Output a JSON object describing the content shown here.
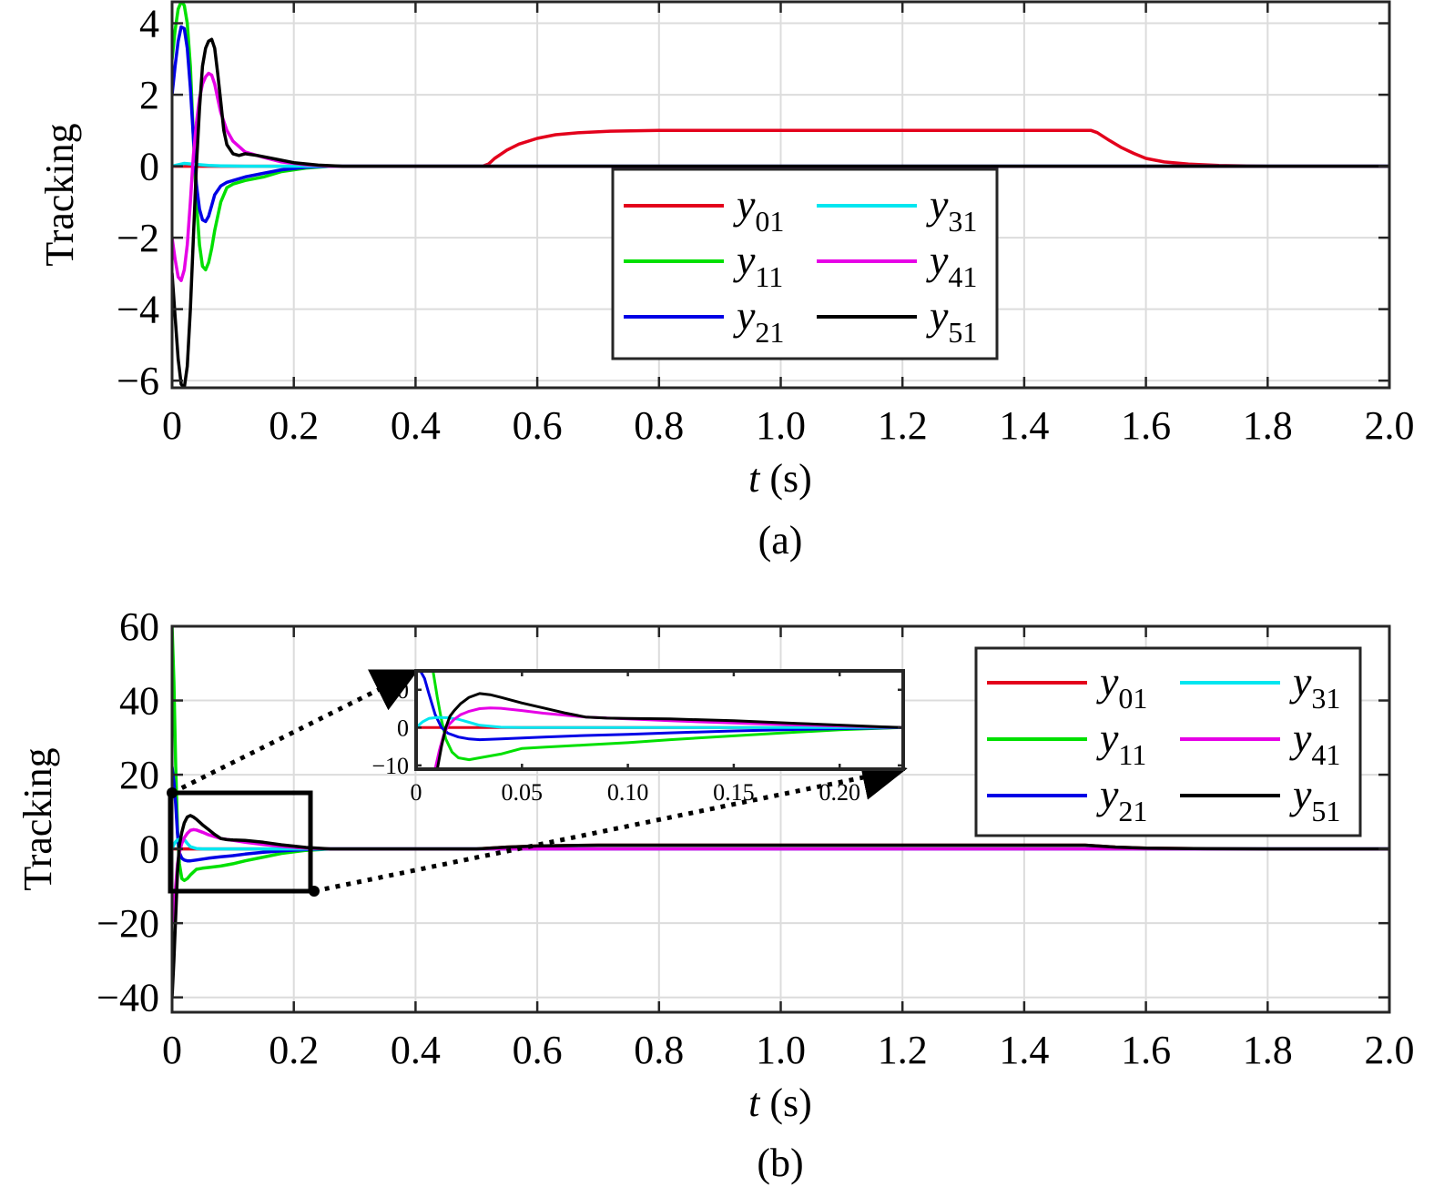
{
  "figure": {
    "panel_a": {
      "caption": "(a)"
    },
    "panel_b": {
      "caption": "(b)"
    }
  },
  "chart_data": [
    {
      "type": "line",
      "panel": "(a)",
      "xlabel_italic": "t",
      "xlabel_rest": " (s)",
      "ylabel": "Tracking",
      "xlim": [
        0,
        2.0
      ],
      "ylim": [
        -6.2,
        4.6
      ],
      "xticks": [
        0,
        0.2,
        0.4,
        0.6,
        0.8,
        1.0,
        1.2,
        1.4,
        1.6,
        1.8,
        2.0
      ],
      "xtick_labels": [
        "0",
        "0.2",
        "0.4",
        "0.6",
        "0.8",
        "1.0",
        "1.2",
        "1.4",
        "1.6",
        "1.8",
        "2.0"
      ],
      "yticks": [
        -6,
        -4,
        -2,
        0,
        2,
        4
      ],
      "ytick_labels": [
        "−6",
        "−4",
        "−2",
        "0",
        "2",
        "4"
      ],
      "grid": true,
      "legend_placement": "center",
      "series": [
        {
          "name": "y",
          "sub": "01",
          "color": "#e3001b",
          "x": [
            0,
            0.5,
            0.51,
            0.52,
            0.53,
            0.55,
            0.57,
            0.6,
            0.63,
            0.67,
            0.72,
            0.8,
            1.0,
            1.2,
            1.4,
            1.5,
            1.51,
            1.52,
            1.54,
            1.56,
            1.58,
            1.6,
            1.63,
            1.67,
            1.72,
            1.8,
            2.0
          ],
          "y": [
            0,
            0,
            0,
            0.06,
            0.22,
            0.45,
            0.62,
            0.78,
            0.88,
            0.94,
            0.98,
            1.0,
            1.0,
            1.0,
            1.0,
            1.0,
            1.0,
            0.94,
            0.72,
            0.52,
            0.36,
            0.22,
            0.12,
            0.06,
            0.02,
            0,
            0
          ]
        },
        {
          "name": "y",
          "sub": "11",
          "color": "#00e000",
          "x": [
            0,
            0.005,
            0.01,
            0.015,
            0.02,
            0.025,
            0.03,
            0.035,
            0.04,
            0.045,
            0.05,
            0.055,
            0.06,
            0.065,
            0.07,
            0.08,
            0.09,
            0.1,
            0.12,
            0.15,
            0.18,
            0.22,
            0.26,
            0.3,
            2.0
          ],
          "y": [
            3,
            3.8,
            4.4,
            4.6,
            4.5,
            4.0,
            2.8,
            0.8,
            -1.0,
            -2.2,
            -2.8,
            -2.9,
            -2.7,
            -2.3,
            -1.8,
            -1.0,
            -0.6,
            -0.5,
            -0.4,
            -0.3,
            -0.15,
            -0.05,
            0,
            0,
            0
          ]
        },
        {
          "name": "y",
          "sub": "21",
          "color": "#0000e6",
          "x": [
            0,
            0.005,
            0.01,
            0.015,
            0.02,
            0.025,
            0.03,
            0.035,
            0.04,
            0.045,
            0.05,
            0.055,
            0.06,
            0.065,
            0.07,
            0.08,
            0.09,
            0.1,
            0.12,
            0.15,
            0.18,
            0.22,
            0.26,
            0.3,
            2.0
          ],
          "y": [
            2,
            2.8,
            3.5,
            3.9,
            3.85,
            3.3,
            2.2,
            0.8,
            -0.5,
            -1.2,
            -1.5,
            -1.55,
            -1.4,
            -1.1,
            -0.8,
            -0.55,
            -0.45,
            -0.4,
            -0.3,
            -0.2,
            -0.1,
            -0.03,
            0,
            0,
            0
          ]
        },
        {
          "name": "y",
          "sub": "31",
          "color": "#00e6f0",
          "x": [
            0,
            0.02,
            0.04,
            0.06,
            0.08,
            0.12,
            0.2,
            0.3,
            2.0
          ],
          "y": [
            0,
            0.08,
            0.05,
            0.02,
            0.01,
            0,
            0,
            0,
            0
          ]
        },
        {
          "name": "y",
          "sub": "41",
          "color": "#e600e6",
          "x": [
            0,
            0.005,
            0.01,
            0.015,
            0.02,
            0.025,
            0.03,
            0.035,
            0.04,
            0.045,
            0.05,
            0.055,
            0.06,
            0.065,
            0.07,
            0.075,
            0.08,
            0.09,
            0.1,
            0.12,
            0.15,
            0.18,
            0.22,
            0.26,
            0.3,
            2.0
          ],
          "y": [
            -2,
            -2.6,
            -3.1,
            -3.2,
            -2.9,
            -2.2,
            -1.0,
            0.3,
            1.2,
            1.9,
            2.3,
            2.5,
            2.6,
            2.55,
            2.3,
            1.9,
            1.5,
            1.0,
            0.7,
            0.4,
            0.25,
            0.12,
            0.04,
            0,
            0,
            0
          ]
        },
        {
          "name": "y",
          "sub": "51",
          "color": "#000000",
          "x": [
            0,
            0.005,
            0.01,
            0.015,
            0.02,
            0.025,
            0.03,
            0.035,
            0.04,
            0.045,
            0.05,
            0.055,
            0.06,
            0.065,
            0.07,
            0.075,
            0.08,
            0.085,
            0.09,
            0.1,
            0.11,
            0.12,
            0.14,
            0.17,
            0.2,
            0.24,
            0.28,
            0.3,
            2.0
          ],
          "y": [
            -3,
            -4.2,
            -5.4,
            -6.1,
            -6.2,
            -5.6,
            -4.0,
            -2.0,
            0,
            1.6,
            2.8,
            3.3,
            3.5,
            3.55,
            3.3,
            2.6,
            1.8,
            1.0,
            0.6,
            0.35,
            0.3,
            0.35,
            0.3,
            0.2,
            0.1,
            0.03,
            0,
            0,
            0
          ]
        }
      ]
    },
    {
      "type": "line",
      "panel": "(b)",
      "xlabel_italic": "t",
      "xlabel_rest": " (s)",
      "ylabel": "Tracking",
      "xlim": [
        0,
        2.0
      ],
      "ylim": [
        -44,
        60
      ],
      "xticks": [
        0,
        0.2,
        0.4,
        0.6,
        0.8,
        1.0,
        1.2,
        1.4,
        1.6,
        1.8,
        2.0
      ],
      "xtick_labels": [
        "0",
        "0.2",
        "0.4",
        "0.6",
        "0.8",
        "1.0",
        "1.2",
        "1.4",
        "1.6",
        "1.8",
        "2.0"
      ],
      "yticks": [
        -40,
        -20,
        0,
        20,
        40,
        60
      ],
      "ytick_labels": [
        "−40",
        "−20",
        "0",
        "20",
        "40",
        "60"
      ],
      "grid": true,
      "legend_placement": "top-right",
      "series": [
        {
          "name": "y",
          "sub": "01",
          "color": "#e3001b",
          "x": [
            0,
            0.5,
            0.55,
            0.6,
            0.7,
            0.8,
            1.5,
            1.55,
            1.6,
            1.7,
            1.8,
            2.0
          ],
          "y": [
            0,
            0,
            0.5,
            0.8,
            1,
            1,
            1,
            0.5,
            0.2,
            0.05,
            0,
            0
          ]
        },
        {
          "name": "y",
          "sub": "11",
          "color": "#00e000",
          "x": [
            0,
            0.003,
            0.006,
            0.009,
            0.012,
            0.016,
            0.02,
            0.025,
            0.03,
            0.04,
            0.05,
            0.06,
            0.08,
            0.1,
            0.12,
            0.15,
            0.18,
            0.22,
            0.26,
            2.0
          ],
          "y": [
            60,
            45,
            22,
            5,
            -4,
            -8,
            -8.5,
            -8,
            -7,
            -5.5,
            -5.2,
            -5,
            -4.6,
            -4,
            -3.2,
            -2.2,
            -1.2,
            -0.4,
            0,
            0
          ]
        },
        {
          "name": "y",
          "sub": "21",
          "color": "#0000e6",
          "x": [
            0,
            0.003,
            0.006,
            0.009,
            0.012,
            0.016,
            0.02,
            0.025,
            0.03,
            0.04,
            0.06,
            0.08,
            0.1,
            0.12,
            0.15,
            0.18,
            0.22,
            0.26,
            2.0
          ],
          "y": [
            22,
            18,
            12,
            4,
            -1,
            -2.5,
            -3,
            -3.2,
            -3.2,
            -3,
            -2.5,
            -2.1,
            -1.8,
            -1.4,
            -0.9,
            -0.5,
            -0.15,
            0,
            0
          ]
        },
        {
          "name": "y",
          "sub": "31",
          "color": "#00e6f0",
          "x": [
            0,
            0.003,
            0.006,
            0.01,
            0.015,
            0.02,
            0.025,
            0.03,
            0.04,
            0.05,
            0.08,
            0.12,
            0.2,
            2.0
          ],
          "y": [
            0,
            1.2,
            2.0,
            2.5,
            2.8,
            2.5,
            1.5,
            0.6,
            0.1,
            0,
            0,
            0,
            0,
            0
          ]
        },
        {
          "name": "y",
          "sub": "41",
          "color": "#e600e6",
          "x": [
            0,
            0.003,
            0.006,
            0.009,
            0.012,
            0.016,
            0.02,
            0.025,
            0.03,
            0.035,
            0.04,
            0.05,
            0.06,
            0.08,
            0.1,
            0.12,
            0.15,
            0.18,
            0.22,
            0.26,
            2.0
          ],
          "y": [
            -20,
            -16,
            -10,
            -4,
            -1,
            1.5,
            3,
            4.2,
            5,
            5.2,
            5.1,
            4.5,
            3.8,
            2.8,
            2.3,
            1.8,
            1.2,
            0.7,
            0.2,
            0,
            0
          ]
        },
        {
          "name": "y",
          "sub": "51",
          "color": "#000000",
          "x": [
            0,
            0.003,
            0.006,
            0.009,
            0.012,
            0.016,
            0.02,
            0.025,
            0.03,
            0.035,
            0.04,
            0.05,
            0.06,
            0.07,
            0.08,
            0.09,
            0.1,
            0.12,
            0.15,
            0.18,
            0.22,
            0.26,
            0.5,
            0.55,
            0.6,
            0.7,
            0.8,
            1.5,
            1.55,
            1.6,
            1.7,
            1.8,
            2.0
          ],
          "y": [
            -40,
            -30,
            -18,
            -6,
            1,
            4.5,
            7,
            8.6,
            9,
            8.6,
            8,
            6.5,
            5.2,
            3.9,
            2.8,
            2.5,
            2.4,
            2.3,
            1.8,
            1.1,
            0.4,
            0,
            0,
            0.5,
            0.8,
            1,
            1,
            1,
            0.5,
            0.2,
            0.05,
            0,
            0
          ]
        }
      ]
    },
    {
      "type": "line",
      "panel": "(b) inset",
      "xlim": [
        0,
        0.23
      ],
      "ylim": [
        -11,
        15
      ],
      "xticks": [
        0,
        0.05,
        0.1,
        0.15,
        0.2
      ],
      "xtick_labels": [
        "0",
        "0.05",
        "0.10",
        "0.15",
        "0.20"
      ],
      "yticks": [
        -10,
        0,
        10
      ],
      "ytick_labels": [
        "−10",
        "0",
        "10"
      ],
      "grid": false,
      "series": [
        {
          "name": "y",
          "sub": "01",
          "color": "#e3001b",
          "x": [
            0,
            0.23
          ],
          "y": [
            0,
            0
          ]
        },
        {
          "name": "y",
          "sub": "11",
          "color": "#00e000",
          "x": [
            0.008,
            0.01,
            0.012,
            0.014,
            0.017,
            0.02,
            0.025,
            0.03,
            0.04,
            0.05,
            0.06,
            0.08,
            0.1,
            0.12,
            0.15,
            0.18,
            0.2,
            0.23
          ],
          "y": [
            15,
            8,
            2,
            -3,
            -6.5,
            -8,
            -8.5,
            -8,
            -7,
            -5.5,
            -5.2,
            -4.6,
            -4,
            -3.2,
            -2.2,
            -1.2,
            -0.6,
            0
          ]
        },
        {
          "name": "y",
          "sub": "21",
          "color": "#0000e6",
          "x": [
            0.002,
            0.004,
            0.006,
            0.009,
            0.012,
            0.015,
            0.02,
            0.025,
            0.03,
            0.04,
            0.06,
            0.08,
            0.1,
            0.12,
            0.15,
            0.18,
            0.22,
            0.23
          ],
          "y": [
            15,
            13,
            9,
            3.5,
            0,
            -1.5,
            -2.5,
            -3,
            -3.2,
            -3,
            -2.5,
            -2.1,
            -1.8,
            -1.4,
            -0.9,
            -0.5,
            -0.1,
            0
          ]
        },
        {
          "name": "y",
          "sub": "31",
          "color": "#00e6f0",
          "x": [
            0,
            0.003,
            0.006,
            0.01,
            0.015,
            0.02,
            0.025,
            0.03,
            0.04,
            0.05,
            0.08,
            0.23
          ],
          "y": [
            0,
            1.5,
            2.4,
            2.7,
            2.6,
            2.2,
            1.4,
            0.6,
            0.1,
            0,
            0,
            0
          ]
        },
        {
          "name": "y",
          "sub": "41",
          "color": "#e600e6",
          "x": [
            0.009,
            0.011,
            0.013,
            0.015,
            0.018,
            0.021,
            0.025,
            0.03,
            0.035,
            0.04,
            0.05,
            0.06,
            0.08,
            0.1,
            0.12,
            0.15,
            0.18,
            0.22,
            0.23
          ],
          "y": [
            -11,
            -6,
            -2,
            0.5,
            2.2,
            3.4,
            4.3,
            5,
            5.2,
            5.1,
            4.5,
            3.8,
            2.8,
            2.3,
            1.8,
            1.2,
            0.7,
            0.15,
            0
          ]
        },
        {
          "name": "y",
          "sub": "51",
          "color": "#000000",
          "x": [
            0.01,
            0.012,
            0.014,
            0.016,
            0.018,
            0.021,
            0.025,
            0.03,
            0.035,
            0.04,
            0.05,
            0.06,
            0.07,
            0.08,
            0.09,
            0.1,
            0.12,
            0.15,
            0.18,
            0.22,
            0.23
          ],
          "y": [
            -11,
            -5,
            0,
            3,
            4.5,
            6.3,
            8,
            9,
            8.7,
            8,
            6.5,
            5.2,
            3.9,
            2.8,
            2.5,
            2.4,
            2.3,
            1.8,
            1.1,
            0.2,
            0
          ]
        }
      ]
    }
  ]
}
